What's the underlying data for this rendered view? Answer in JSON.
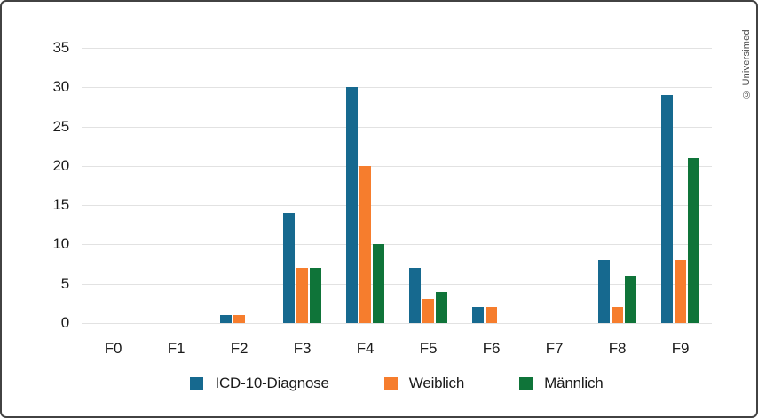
{
  "watermark": "© Universimed",
  "frame": {
    "border_color": "#424242",
    "background": "#ffffff",
    "gridline_color": "#e2e2e2",
    "text_color": "#1a1a1a"
  },
  "chart_data": {
    "type": "bar",
    "title": "",
    "xlabel": "",
    "ylabel": "",
    "categories": [
      "F0",
      "F1",
      "F2",
      "F3",
      "F4",
      "F5",
      "F6",
      "F7",
      "F8",
      "F9"
    ],
    "series": [
      {
        "name": "ICD-10-Diagnose",
        "color": "#16698f",
        "values": [
          0,
          0,
          1,
          14,
          30,
          7,
          2,
          0,
          8,
          29
        ]
      },
      {
        "name": "Weiblich",
        "color": "#f67d2d",
        "values": [
          0,
          0,
          1,
          7,
          20,
          3,
          2,
          0,
          2,
          8
        ]
      },
      {
        "name": "Männlich",
        "color": "#0f7439",
        "values": [
          0,
          0,
          0,
          7,
          10,
          4,
          0,
          0,
          6,
          21
        ]
      }
    ],
    "ylim": [
      0,
      35
    ],
    "ytick_step": 5,
    "yticks": [
      0,
      5,
      10,
      15,
      20,
      25,
      30,
      35
    ],
    "grid": "horizontal",
    "legend_position": "bottom"
  }
}
